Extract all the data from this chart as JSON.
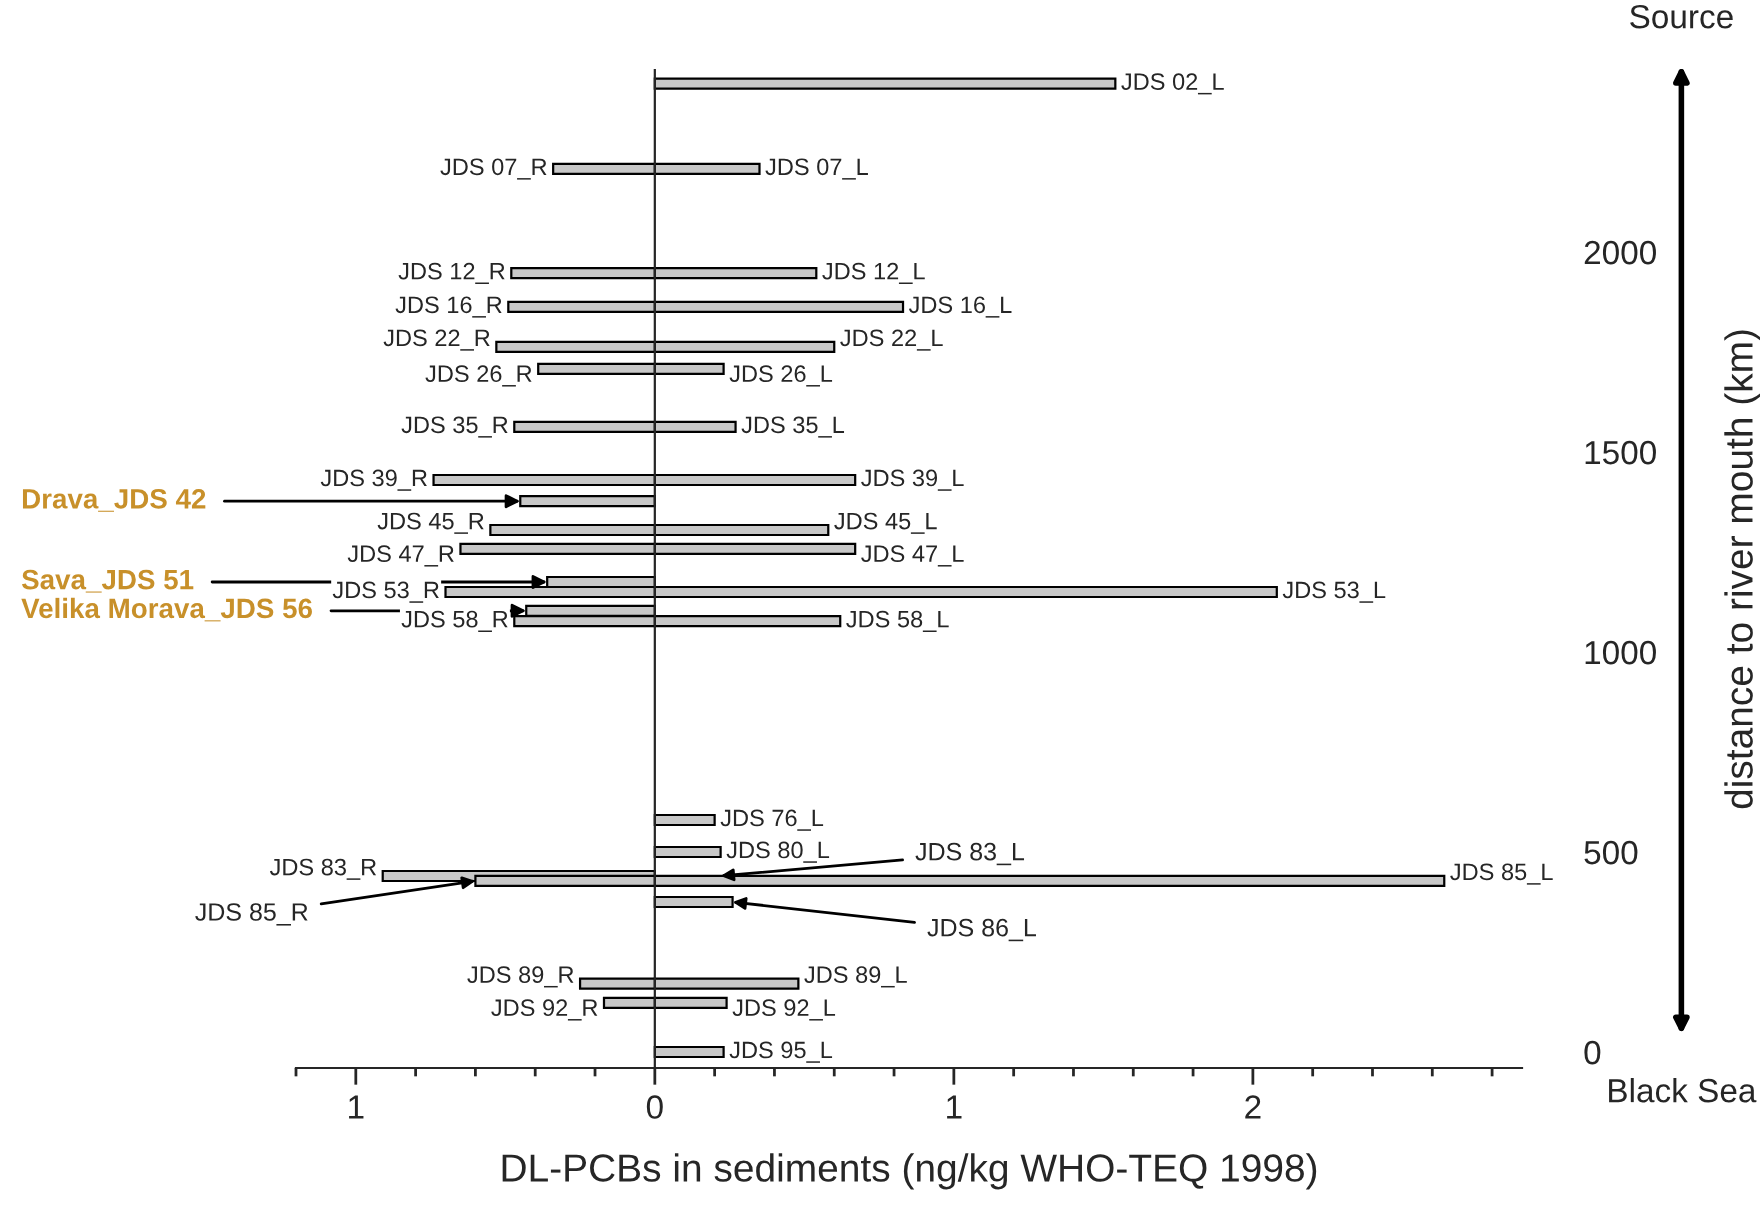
{
  "chart_data": {
    "type": "bar",
    "orientation": "horizontal",
    "xlabel": "DL-PCBs in sediments (ng/kg WHO-TEQ 1998)",
    "ylabel": "distance to river mouth (km)",
    "xlim": [
      -1.2,
      2.9
    ],
    "xticks": [
      {
        "value": -1.2,
        "label": null
      },
      {
        "value": -1,
        "label": "1"
      },
      {
        "value": -0.8,
        "label": null
      },
      {
        "value": -0.6,
        "label": null
      },
      {
        "value": -0.4,
        "label": null
      },
      {
        "value": -0.2,
        "label": null
      },
      0,
      {
        "value": 0.2,
        "label": null
      },
      {
        "value": 0.4,
        "label": null
      },
      {
        "value": 0.6,
        "label": null
      },
      {
        "value": 0.8,
        "label": null
      },
      1,
      {
        "value": 1.2,
        "label": null
      },
      {
        "value": 1.4,
        "label": null
      },
      {
        "value": 1.6,
        "label": null
      },
      {
        "value": 1.8,
        "label": null
      },
      2,
      {
        "value": 2.2,
        "label": null
      },
      {
        "value": 2.4,
        "label": null
      },
      {
        "value": 2.6,
        "label": null
      },
      {
        "value": 2.8,
        "label": null
      }
    ],
    "ylim": [
      -40,
      2455
    ],
    "yticks": [
      0,
      500,
      1000,
      1500,
      2000
    ],
    "series": [
      {
        "color": "#c8c8c8",
        "x": [
          2421,
          2208,
          1947,
          1863,
          1763,
          1708,
          1563,
          1430,
          1305,
          1258,
          1150,
          1077,
          580,
          500,
          428,
          375,
          171,
          123,
          0
        ],
        "values": [
          1.54,
          0.35,
          0.54,
          0.83,
          0.6,
          0.23,
          0.27,
          0.67,
          0.58,
          0.67,
          2.08,
          0.62,
          0.2,
          0.22,
          2.64,
          0.26,
          0.48,
          0.24,
          0.23
        ],
        "value_labels": [
          "JDS 02_L",
          "JDS 07_L",
          "JDS 12_L",
          "JDS 16_L",
          "JDS 22_L",
          "JDS 26_L",
          "JDS 35_L",
          "JDS 39_L",
          "JDS 45_L",
          "JDS 47_L",
          "JDS 53_L",
          "JDS 58_L",
          "JDS 76_L",
          "JDS 80_L",
          "JDS 85_L",
          null,
          "JDS 89_L",
          "JDS 92_L",
          "JDS 95_L"
        ]
      },
      {
        "color": "#c8c8c8",
        "x": [
          2208,
          1947,
          1863,
          1763,
          1708,
          1563,
          1430,
          1305,
          1258,
          1150,
          1077,
          440,
          428,
          171,
          123
        ],
        "values": [
          -0.34,
          -0.48,
          -0.49,
          -0.53,
          -0.39,
          -0.47,
          -0.74,
          -0.55,
          -0.65,
          -0.7,
          -0.47,
          -0.91,
          -0.6,
          -0.25,
          -0.17
        ],
        "value_labels": [
          "JDS 07_R",
          "JDS 12_R",
          "JDS 16_R",
          "JDS 22_R",
          "JDS 26_R",
          "JDS 35_R",
          "JDS 39_R",
          "JDS 45_R",
          "JDS 47_R",
          "JDS 53_R",
          "JDS 58_R",
          "JDS 83_R",
          null,
          "JDS 89_R",
          "JDS 92_R"
        ]
      },
      {
        "color": "#c8c8c8",
        "x": [
          1377,
          1175,
          1103
        ],
        "values": [
          -0.45,
          -0.36,
          -0.43
        ]
      }
    ],
    "annotations": [
      "Source",
      "Black Sea",
      {
        "text": "Drava_JDS 42",
        "x": -0.45,
        "y": 1377
      },
      {
        "text": "Sava_JDS 51",
        "x": -0.36,
        "y": 1175
      },
      {
        "text": "Velika Morava_JDS 56",
        "x": -0.43,
        "y": 1103
      },
      {
        "text": "JDS 83_L",
        "x": 0.22,
        "y": 440
      },
      {
        "text": "JDS 85_R",
        "x": -0.6,
        "y": 428
      },
      {
        "text": "JDS 86_L",
        "x": 0.26,
        "y": 375
      }
    ]
  }
}
